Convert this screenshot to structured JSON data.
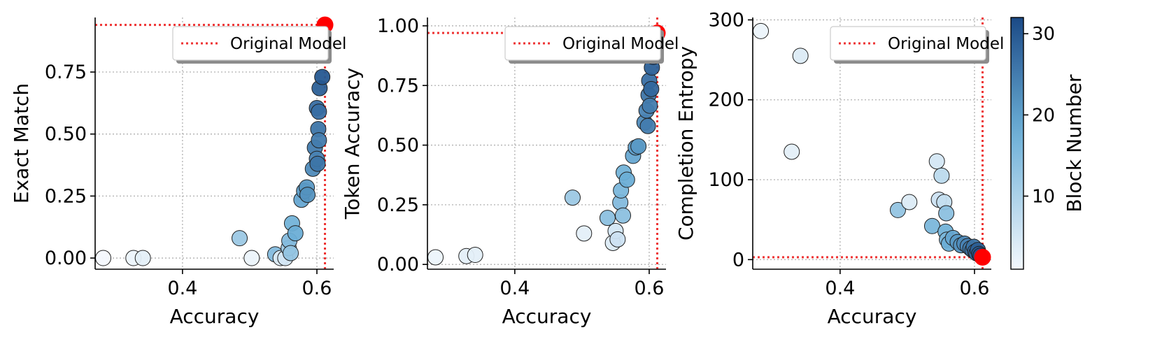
{
  "colors": {
    "cmap_low": "#f4f8fd",
    "cmap_high": "#1b4a86",
    "original_marker": "#ff0000",
    "reference_line": "#ee3333",
    "grid": "#b0b0b0",
    "point_edge": "#222222"
  },
  "legend": {
    "label": "Original Model"
  },
  "colorbar": {
    "label": "Block Number",
    "range": [
      1,
      32
    ],
    "ticks": [
      10,
      20,
      30
    ]
  },
  "chart_data": [
    {
      "type": "scatter",
      "xlabel": "Accuracy",
      "ylabel": "Exact Match",
      "xlim": [
        0.27,
        0.625
      ],
      "ylim": [
        -0.045,
        0.97
      ],
      "xticks": [
        0.4,
        0.6
      ],
      "yticks": [
        0.0,
        0.25,
        0.5,
        0.75
      ],
      "ytick_labels": [
        "0.00",
        "0.25",
        "0.50",
        "0.75"
      ],
      "grid": true,
      "legend_position": "top-right",
      "original_model": {
        "x": 0.612,
        "y": 0.94
      },
      "points": [
        {
          "x": 0.282,
          "y": 0.0,
          "block": 1
        },
        {
          "x": 0.327,
          "y": 0.0,
          "block": 2
        },
        {
          "x": 0.341,
          "y": 0.0,
          "block": 3
        },
        {
          "x": 0.485,
          "y": 0.08,
          "block": 12
        },
        {
          "x": 0.503,
          "y": 0.0,
          "block": 2
        },
        {
          "x": 0.538,
          "y": 0.015,
          "block": 15
        },
        {
          "x": 0.546,
          "y": 0.0,
          "block": 4
        },
        {
          "x": 0.553,
          "y": 0.0,
          "block": 5
        },
        {
          "x": 0.558,
          "y": 0.04,
          "block": 12
        },
        {
          "x": 0.559,
          "y": 0.07,
          "block": 15
        },
        {
          "x": 0.561,
          "y": 0.02,
          "block": 13
        },
        {
          "x": 0.563,
          "y": 0.14,
          "block": 17
        },
        {
          "x": 0.568,
          "y": 0.1,
          "block": 18
        },
        {
          "x": 0.577,
          "y": 0.235,
          "block": 19
        },
        {
          "x": 0.581,
          "y": 0.27,
          "block": 20
        },
        {
          "x": 0.585,
          "y": 0.285,
          "block": 21
        },
        {
          "x": 0.586,
          "y": 0.255,
          "block": 22
        },
        {
          "x": 0.594,
          "y": 0.36,
          "block": 23
        },
        {
          "x": 0.597,
          "y": 0.445,
          "block": 25
        },
        {
          "x": 0.6,
          "y": 0.4,
          "block": 24
        },
        {
          "x": 0.6,
          "y": 0.605,
          "block": 27
        },
        {
          "x": 0.601,
          "y": 0.38,
          "block": 26
        },
        {
          "x": 0.602,
          "y": 0.52,
          "block": 26
        },
        {
          "x": 0.603,
          "y": 0.475,
          "block": 25
        },
        {
          "x": 0.603,
          "y": 0.59,
          "block": 27
        },
        {
          "x": 0.604,
          "y": 0.685,
          "block": 29
        },
        {
          "x": 0.606,
          "y": 0.88,
          "block": 31
        },
        {
          "x": 0.608,
          "y": 0.73,
          "block": 30
        }
      ]
    },
    {
      "type": "scatter",
      "xlabel": "Accuracy",
      "ylabel": "Token Accuracy",
      "xlim": [
        0.27,
        0.625
      ],
      "ylim": [
        -0.02,
        1.035
      ],
      "xticks": [
        0.4,
        0.6
      ],
      "yticks": [
        0.0,
        0.25,
        0.5,
        0.75,
        1.0
      ],
      "ytick_labels": [
        "0.00",
        "0.25",
        "0.50",
        "0.75",
        "1.00"
      ],
      "grid": true,
      "legend_position": "top-right",
      "original_model": {
        "x": 0.612,
        "y": 0.97
      },
      "points": [
        {
          "x": 0.282,
          "y": 0.03,
          "block": 2
        },
        {
          "x": 0.328,
          "y": 0.035,
          "block": 3
        },
        {
          "x": 0.341,
          "y": 0.04,
          "block": 3
        },
        {
          "x": 0.486,
          "y": 0.28,
          "block": 12
        },
        {
          "x": 0.503,
          "y": 0.13,
          "block": 3
        },
        {
          "x": 0.538,
          "y": 0.195,
          "block": 14
        },
        {
          "x": 0.546,
          "y": 0.09,
          "block": 4
        },
        {
          "x": 0.55,
          "y": 0.14,
          "block": 5
        },
        {
          "x": 0.553,
          "y": 0.105,
          "block": 6
        },
        {
          "x": 0.557,
          "y": 0.26,
          "block": 15
        },
        {
          "x": 0.558,
          "y": 0.31,
          "block": 16
        },
        {
          "x": 0.561,
          "y": 0.205,
          "block": 14
        },
        {
          "x": 0.562,
          "y": 0.385,
          "block": 17
        },
        {
          "x": 0.567,
          "y": 0.355,
          "block": 18
        },
        {
          "x": 0.576,
          "y": 0.455,
          "block": 19
        },
        {
          "x": 0.58,
          "y": 0.49,
          "block": 20
        },
        {
          "x": 0.584,
          "y": 0.495,
          "block": 21
        },
        {
          "x": 0.593,
          "y": 0.595,
          "block": 23
        },
        {
          "x": 0.596,
          "y": 0.645,
          "block": 24
        },
        {
          "x": 0.598,
          "y": 0.58,
          "block": 25
        },
        {
          "x": 0.599,
          "y": 0.71,
          "block": 26
        },
        {
          "x": 0.6,
          "y": 0.77,
          "block": 27
        },
        {
          "x": 0.601,
          "y": 0.665,
          "block": 25
        },
        {
          "x": 0.603,
          "y": 0.735,
          "block": 28
        },
        {
          "x": 0.604,
          "y": 0.825,
          "block": 29
        },
        {
          "x": 0.604,
          "y": 0.94,
          "block": 30
        },
        {
          "x": 0.606,
          "y": 0.87,
          "block": 31
        }
      ]
    },
    {
      "type": "scatter",
      "xlabel": "Accuracy",
      "ylabel": "Completion Entropy",
      "xlim": [
        0.27,
        0.625
      ],
      "ylim": [
        -12,
        303
      ],
      "xticks": [
        0.4,
        0.6
      ],
      "yticks": [
        0,
        100,
        200,
        300
      ],
      "ytick_labels": [
        "0",
        "100",
        "200",
        "300"
      ],
      "grid": true,
      "legend_position": "top-right",
      "original_model": {
        "x": 0.612,
        "y": 3
      },
      "points": [
        {
          "x": 0.282,
          "y": 286,
          "block": 2
        },
        {
          "x": 0.328,
          "y": 135,
          "block": 3
        },
        {
          "x": 0.341,
          "y": 255,
          "block": 4
        },
        {
          "x": 0.486,
          "y": 62,
          "block": 13
        },
        {
          "x": 0.503,
          "y": 72,
          "block": 4
        },
        {
          "x": 0.537,
          "y": 42,
          "block": 16
        },
        {
          "x": 0.544,
          "y": 123,
          "block": 5
        },
        {
          "x": 0.547,
          "y": 75,
          "block": 6
        },
        {
          "x": 0.551,
          "y": 105,
          "block": 8
        },
        {
          "x": 0.555,
          "y": 72,
          "block": 7
        },
        {
          "x": 0.558,
          "y": 58,
          "block": 14
        },
        {
          "x": 0.557,
          "y": 35,
          "block": 17
        },
        {
          "x": 0.559,
          "y": 25,
          "block": 16
        },
        {
          "x": 0.562,
          "y": 20,
          "block": 18
        },
        {
          "x": 0.568,
          "y": 27,
          "block": 19
        },
        {
          "x": 0.575,
          "y": 22,
          "block": 21
        },
        {
          "x": 0.58,
          "y": 18,
          "block": 22
        },
        {
          "x": 0.585,
          "y": 20,
          "block": 23
        },
        {
          "x": 0.59,
          "y": 17,
          "block": 24
        },
        {
          "x": 0.594,
          "y": 14,
          "block": 25
        },
        {
          "x": 0.597,
          "y": 12,
          "block": 26
        },
        {
          "x": 0.599,
          "y": 16,
          "block": 26
        },
        {
          "x": 0.601,
          "y": 10,
          "block": 27
        },
        {
          "x": 0.603,
          "y": 8,
          "block": 28
        },
        {
          "x": 0.605,
          "y": 12,
          "block": 29
        },
        {
          "x": 0.607,
          "y": 7,
          "block": 30
        },
        {
          "x": 0.609,
          "y": 5,
          "block": 31
        }
      ]
    }
  ]
}
